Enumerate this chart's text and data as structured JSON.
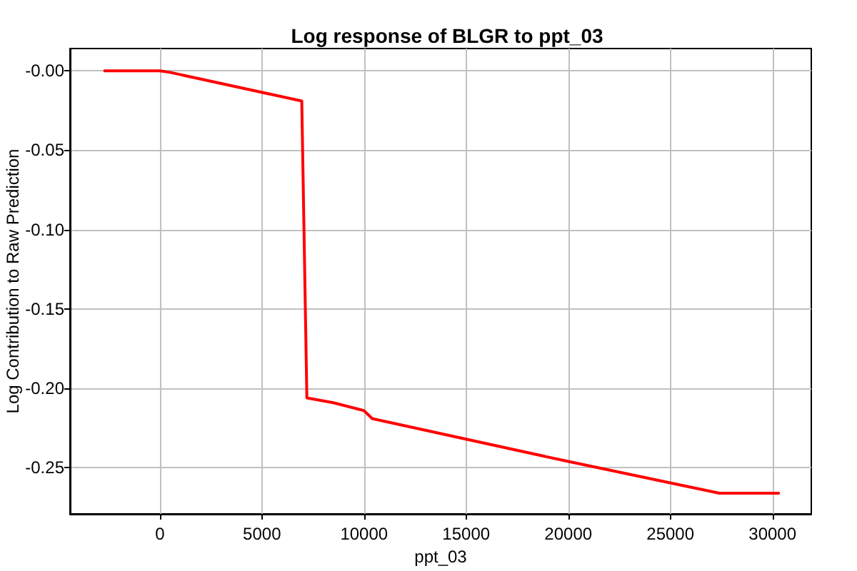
{
  "chart_data": {
    "type": "line",
    "title": "Log response of BLGR to ppt_03",
    "xlabel": "ppt_03",
    "ylabel": "Log Contribution to Raw Prediction",
    "series": [
      {
        "color": "#ff0000",
        "x": [
          -2700,
          0,
          500,
          6950,
          7200,
          8500,
          10000,
          10400,
          20000,
          27400,
          30300
        ],
        "values": [
          0,
          0,
          -0.001,
          -0.019,
          -0.206,
          -0.209,
          -0.214,
          -0.219,
          -0.246,
          -0.266,
          -0.266
        ]
      }
    ],
    "xlim": [
      -4400,
      31900
    ],
    "xticks": [
      0,
      5000,
      10000,
      15000,
      20000,
      25000,
      30000
    ],
    "ylim": [
      -0.279,
      0.014
    ],
    "yticks": [
      {
        "value": 0,
        "label": "-0.00"
      },
      -0.05,
      {
        "value": -0.1,
        "label": "-0.10"
      },
      -0.15,
      {
        "value": -0.2,
        "label": "-0.20"
      },
      -0.25
    ],
    "grid": true,
    "marker": "none",
    "line_style": "solid"
  }
}
